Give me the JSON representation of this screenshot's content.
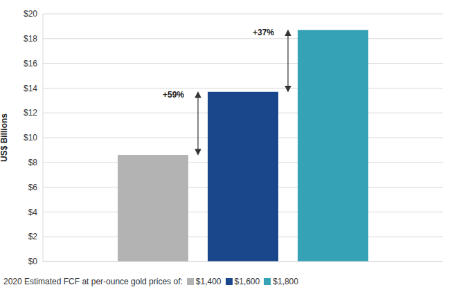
{
  "chart_data": {
    "type": "bar",
    "categories": [
      "$1,400",
      "$1,600",
      "$1,800"
    ],
    "values": [
      8.6,
      13.7,
      18.7
    ],
    "colors": [
      "#b3b3b3",
      "#1a468c",
      "#35a2b5"
    ],
    "y_label": "US$ Billions",
    "legend_title": "2020 Estimated FCF at per-ounce gold prices of:",
    "ylim": [
      0,
      20
    ],
    "yticks": [
      {
        "value": 0,
        "label": "$0"
      },
      {
        "value": 2,
        "label": "$2"
      },
      {
        "value": 4,
        "label": "$4"
      },
      {
        "value": 6,
        "label": "$6"
      },
      {
        "value": 8,
        "label": "$8"
      },
      {
        "value": 10,
        "label": "$10"
      },
      {
        "value": 12,
        "label": "$12"
      },
      {
        "value": 14,
        "label": "$14"
      },
      {
        "value": 16,
        "label": "$16"
      },
      {
        "value": 18,
        "label": "$18"
      },
      {
        "value": 20,
        "label": "$20"
      }
    ],
    "grid": true,
    "legend": "bottom",
    "tick_labels": "y",
    "annotations": [
      {
        "text": "+59%",
        "from": "$1,400",
        "to": "$1,600"
      },
      {
        "text": "+37%",
        "from": "$1,600",
        "to": "$1,800"
      }
    ]
  }
}
